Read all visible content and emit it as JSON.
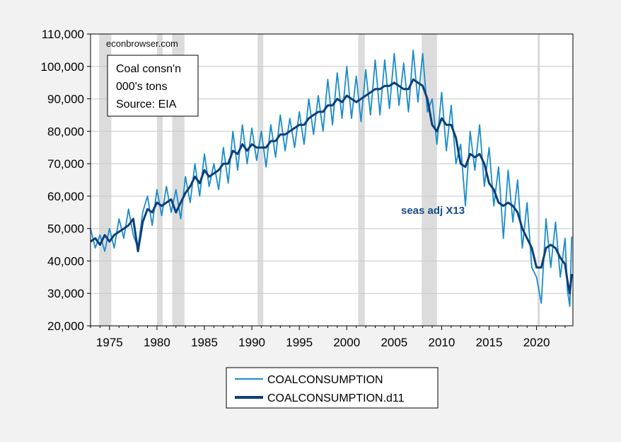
{
  "chart_data": {
    "type": "line",
    "watermark": "econbrowser.com",
    "info_box": [
      "Coal consn'n",
      "000's tons",
      "Source: EIA"
    ],
    "annotation": "seas adj X13",
    "xlim": [
      1973.0,
      2023.83
    ],
    "ylim": [
      20000,
      110000
    ],
    "x_ticks": [
      1975,
      1980,
      1985,
      1990,
      1995,
      2000,
      2005,
      2010,
      2015,
      2020
    ],
    "x_tick_labels": [
      "1975",
      "1980",
      "1985",
      "1990",
      "1995",
      "2000",
      "2005",
      "2010",
      "2015",
      "2020"
    ],
    "y_ticks": [
      20000,
      30000,
      40000,
      50000,
      60000,
      70000,
      80000,
      90000,
      100000,
      110000
    ],
    "y_tick_labels": [
      "20,000",
      "30,000",
      "40,000",
      "50,000",
      "60,000",
      "70,000",
      "80,000",
      "90,000",
      "100,000",
      "110,000"
    ],
    "grid": true,
    "legend_position": "bottom-center",
    "recessions": [
      [
        1973.9,
        1975.2
      ],
      [
        1980.0,
        1980.6
      ],
      [
        1981.6,
        1982.9
      ],
      [
        1990.6,
        1991.2
      ],
      [
        2001.2,
        2001.9
      ],
      [
        2007.9,
        2009.5
      ],
      [
        2020.1,
        2020.35
      ]
    ],
    "series": [
      {
        "name": "COALCONSUMPTION",
        "color": "#1a8ccc",
        "x": [
          1973.0,
          1973.5,
          1974.0,
          1974.5,
          1975.0,
          1975.5,
          1976.0,
          1976.5,
          1977.0,
          1977.5,
          1978.0,
          1978.5,
          1979.0,
          1979.5,
          1980.0,
          1980.5,
          1981.0,
          1981.5,
          1982.0,
          1982.5,
          1983.0,
          1983.5,
          1984.0,
          1984.5,
          1985.0,
          1985.5,
          1986.0,
          1986.5,
          1987.0,
          1987.5,
          1988.0,
          1988.5,
          1989.0,
          1989.5,
          1990.0,
          1990.5,
          1991.0,
          1991.5,
          1992.0,
          1992.5,
          1993.0,
          1993.5,
          1994.0,
          1994.5,
          1995.0,
          1995.5,
          1996.0,
          1996.5,
          1997.0,
          1997.5,
          1998.0,
          1998.5,
          1999.0,
          1999.5,
          2000.0,
          2000.5,
          2001.0,
          2001.5,
          2002.0,
          2002.5,
          2003.0,
          2003.5,
          2004.0,
          2004.5,
          2005.0,
          2005.5,
          2006.0,
          2006.5,
          2007.0,
          2007.5,
          2008.0,
          2008.5,
          2009.0,
          2009.5,
          2010.0,
          2010.5,
          2011.0,
          2011.5,
          2012.0,
          2012.5,
          2013.0,
          2013.5,
          2014.0,
          2014.5,
          2015.0,
          2015.5,
          2016.0,
          2016.5,
          2017.0,
          2017.5,
          2018.0,
          2018.5,
          2019.0,
          2019.5,
          2020.0,
          2020.5,
          2021.0,
          2021.5,
          2022.0,
          2022.5,
          2023.0,
          2023.25,
          2023.5,
          2023.7
        ],
        "y": [
          50000,
          44000,
          48000,
          43000,
          50000,
          44000,
          53000,
          47000,
          56000,
          48000,
          44000,
          55000,
          60000,
          51000,
          62000,
          54000,
          63000,
          55000,
          62000,
          53000,
          66000,
          58000,
          70000,
          60000,
          73000,
          63000,
          70000,
          62000,
          75000,
          64000,
          80000,
          68000,
          82000,
          70000,
          81000,
          71000,
          80000,
          69000,
          82000,
          72000,
          85000,
          74000,
          84000,
          75000,
          86000,
          76000,
          90000,
          79000,
          91000,
          80000,
          96000,
          82000,
          98000,
          84000,
          100000,
          84000,
          97000,
          83000,
          99000,
          85000,
          102000,
          85000,
          102000,
          87000,
          104000,
          88000,
          101000,
          86000,
          105000,
          89000,
          104000,
          86000,
          90000,
          76000,
          92000,
          74000,
          88000,
          70000,
          76000,
          57000,
          80000,
          68000,
          82000,
          63000,
          75000,
          57000,
          69000,
          47000,
          68000,
          52000,
          65000,
          44000,
          58000,
          38000,
          35000,
          27000,
          53000,
          38000,
          52000,
          35000,
          47000,
          31000,
          26000,
          47500
        ]
      },
      {
        "name": "COALCONSUMPTION.d11",
        "color": "#0c3f7a",
        "x": [
          1973.0,
          1973.5,
          1974.0,
          1974.5,
          1975.0,
          1975.5,
          1976.0,
          1976.5,
          1977.0,
          1977.5,
          1978.0,
          1978.5,
          1979.0,
          1979.5,
          1980.0,
          1980.5,
          1981.0,
          1981.5,
          1982.0,
          1982.5,
          1983.0,
          1983.5,
          1984.0,
          1984.5,
          1985.0,
          1985.5,
          1986.0,
          1986.5,
          1987.0,
          1987.5,
          1988.0,
          1988.5,
          1989.0,
          1989.5,
          1990.0,
          1990.5,
          1991.0,
          1991.5,
          1992.0,
          1992.5,
          1993.0,
          1993.5,
          1994.0,
          1994.5,
          1995.0,
          1995.5,
          1996.0,
          1996.5,
          1997.0,
          1997.5,
          1998.0,
          1998.5,
          1999.0,
          1999.5,
          2000.0,
          2000.5,
          2001.0,
          2001.5,
          2002.0,
          2002.5,
          2003.0,
          2003.5,
          2004.0,
          2004.5,
          2005.0,
          2005.5,
          2006.0,
          2006.5,
          2007.0,
          2007.5,
          2008.0,
          2008.5,
          2009.0,
          2009.5,
          2010.0,
          2010.5,
          2011.0,
          2011.5,
          2012.0,
          2012.5,
          2013.0,
          2013.5,
          2014.0,
          2014.5,
          2015.0,
          2015.5,
          2016.0,
          2016.5,
          2017.0,
          2017.5,
          2018.0,
          2018.5,
          2019.0,
          2019.5,
          2020.0,
          2020.5,
          2021.0,
          2021.5,
          2022.0,
          2022.5,
          2023.0,
          2023.25,
          2023.5,
          2023.7
        ],
        "y": [
          46000,
          47000,
          45000,
          48000,
          46000,
          48000,
          49000,
          50000,
          51000,
          53000,
          43000,
          52000,
          56000,
          55000,
          58000,
          57000,
          58000,
          59000,
          55000,
          58000,
          61000,
          63000,
          66000,
          64000,
          68000,
          66000,
          67000,
          68000,
          70000,
          70000,
          74000,
          73000,
          76000,
          74000,
          76000,
          75000,
          75000,
          75000,
          77000,
          77000,
          79000,
          79000,
          80000,
          81000,
          82000,
          82000,
          84000,
          85000,
          86000,
          86000,
          88000,
          88000,
          90000,
          89000,
          91000,
          90000,
          89000,
          90000,
          91000,
          92000,
          93000,
          93000,
          94000,
          94000,
          95000,
          94000,
          93000,
          93000,
          96000,
          95000,
          94000,
          90000,
          82000,
          80000,
          84000,
          82000,
          82000,
          78000,
          70000,
          69000,
          73000,
          72000,
          73000,
          70000,
          64000,
          62000,
          58000,
          57000,
          58000,
          57000,
          55000,
          50000,
          47000,
          44000,
          38000,
          38000,
          44000,
          45000,
          44000,
          41000,
          39000,
          34000,
          30000,
          36000
        ]
      }
    ]
  }
}
